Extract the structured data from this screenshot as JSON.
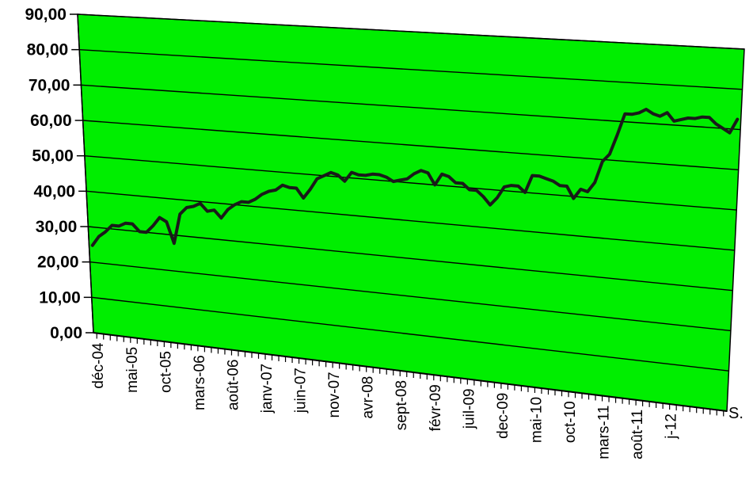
{
  "chart_data": {
    "type": "line",
    "title": "",
    "xlabel": "",
    "ylabel": "",
    "ylim": [
      0,
      90
    ],
    "y_ticks": [
      "0,00",
      "10,00",
      "20,00",
      "30,00",
      "40,00",
      "50,00",
      "60,00",
      "70,00",
      "80,00",
      "90,00"
    ],
    "x_ticks": [
      "déc-04",
      "mai-05",
      "oct-05",
      "mars-06",
      "août-06",
      "janv-07",
      "juin-07",
      "nov-07",
      "avr-08",
      "sept-08",
      "févr-09",
      "juil-09",
      "dec-09",
      "mai-10",
      "oct-10",
      "mars-11",
      "août-11",
      "j-12"
    ],
    "series_label": "S.",
    "grid": true,
    "plot_background": "#00ee00",
    "line_color": "#1a1a1a",
    "series": [
      {
        "values": [
          24.8,
          27.5,
          29,
          31,
          31,
          32,
          32,
          30,
          30,
          32,
          34.5,
          33.5,
          27.7,
          36,
          38,
          38.5,
          39.5,
          37.5,
          38,
          36,
          38.5,
          40,
          41,
          41,
          42,
          43.5,
          44.5,
          45,
          46.5,
          46,
          46,
          43.5,
          46,
          49,
          50,
          51,
          50.5,
          49,
          51.5,
          51,
          51,
          51.5,
          51.5,
          51,
          50,
          50.5,
          51,
          52.5,
          53.5,
          53,
          50,
          53,
          52.5,
          51,
          51,
          49.5,
          49.5,
          48,
          46,
          48,
          51,
          51.5,
          51.5,
          50,
          54.5,
          54.5,
          54,
          53.5,
          52.5,
          52.5,
          49.5,
          52,
          51.5,
          54,
          59.5,
          61.5,
          66.5,
          72,
          72,
          72.5,
          73.5,
          72.5,
          72,
          73,
          71,
          71.5,
          72,
          72,
          72.5,
          72.5,
          71,
          70,
          69,
          72.5
        ]
      }
    ]
  }
}
